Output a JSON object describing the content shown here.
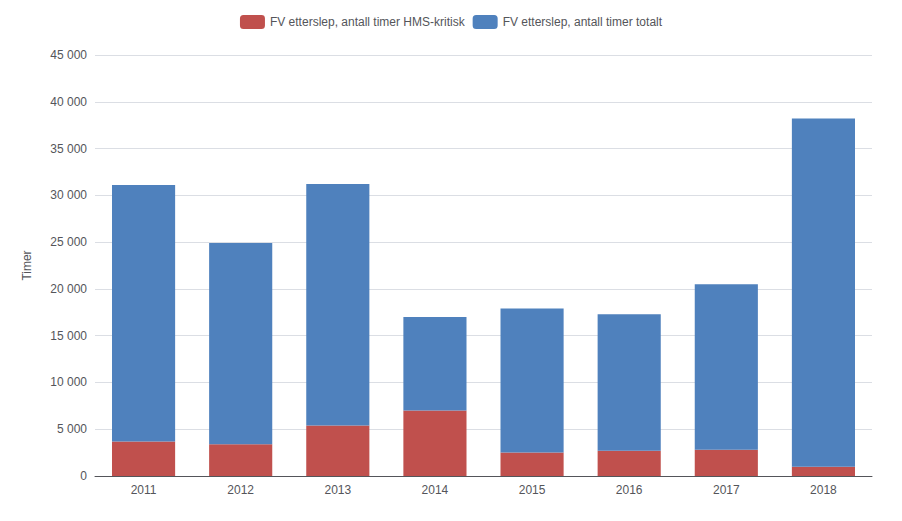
{
  "chart_data": {
    "type": "bar",
    "stacked": true,
    "categories": [
      "2011",
      "2012",
      "2013",
      "2014",
      "2015",
      "2016",
      "2017",
      "2018"
    ],
    "series": [
      {
        "name": "FV etterslep, antall timer HMS-kritisk",
        "color": "#C0504D",
        "values": [
          3700,
          3400,
          5400,
          7000,
          2500,
          2700,
          2800,
          1000
        ]
      },
      {
        "name": "FV etterslep, antall timer totalt",
        "color": "#4F81BD",
        "values": [
          27400,
          21500,
          25800,
          10000,
          15400,
          14600,
          17700,
          37200
        ]
      }
    ],
    "ylabel": "Timer",
    "ylim": [
      0,
      45000
    ],
    "yticks": [
      0,
      {
        "value": 5000,
        "label": "5 000"
      },
      {
        "value": 10000,
        "label": "10 000"
      },
      {
        "value": 15000,
        "label": "15 000"
      },
      {
        "value": 20000,
        "label": "20 000"
      },
      {
        "value": 25000,
        "label": "25 000"
      },
      {
        "value": 30000,
        "label": "30 000"
      },
      {
        "value": 35000,
        "label": "35 000"
      },
      {
        "value": 40000,
        "label": "40 000"
      },
      {
        "value": 45000,
        "label": "45 000"
      }
    ],
    "grid": true,
    "legend": "top"
  }
}
